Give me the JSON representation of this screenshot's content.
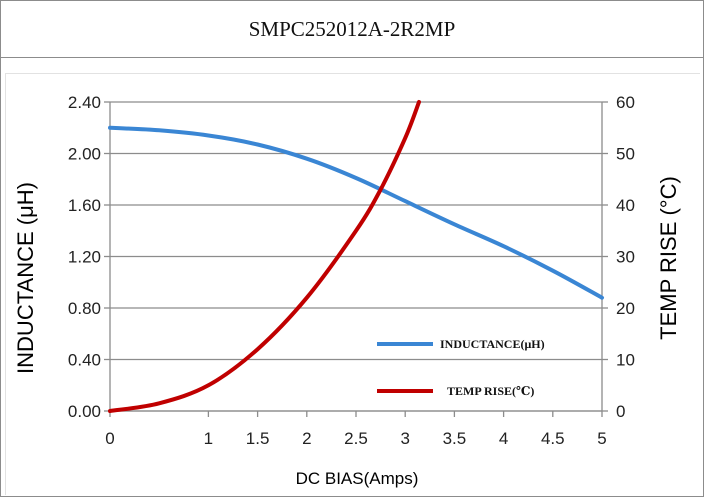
{
  "title": "SMPC252012A-2R2MP",
  "colors": {
    "inductance": "#3a86d4",
    "temp_rise": "#c00000",
    "grid": "#8c8c8c",
    "frame": "#8c8c8c"
  },
  "chart_data": {
    "type": "line",
    "xlabel": "DC BIAS(Amps)",
    "ylabel_left": "INDUCTANCE  (μH)",
    "ylabel_right": "TEMP RISE (°C)",
    "xlim": [
      0,
      5
    ],
    "ylim_left": [
      0,
      2.4
    ],
    "ylim_right": [
      0,
      60
    ],
    "x_ticks": [
      "0",
      "1",
      "1.5",
      "2",
      "2.5",
      "3",
      "3.5",
      "4",
      "4.5",
      "5"
    ],
    "x_tick_values": [
      0,
      1,
      1.5,
      2,
      2.5,
      3,
      3.5,
      4,
      4.5,
      5
    ],
    "y_left_ticks": [
      "0.00",
      "0.40",
      "0.80",
      "1.20",
      "1.60",
      "2.00",
      "2.40"
    ],
    "y_left_tick_values": [
      0,
      0.4,
      0.8,
      1.2,
      1.6,
      2.0,
      2.4
    ],
    "y_right_ticks": [
      "0",
      "10",
      "20",
      "30",
      "40",
      "50",
      "60"
    ],
    "y_right_tick_values": [
      0,
      10,
      20,
      30,
      40,
      50,
      60
    ],
    "grid": "horizontal",
    "legend_position": "bottom-right",
    "series": [
      {
        "name": "INDUCTANCE(μH)",
        "axis": "left",
        "x": [
          0,
          0.5,
          1,
          1.5,
          2,
          2.5,
          3,
          3.5,
          4,
          4.5,
          5
        ],
        "y": [
          2.2,
          2.18,
          2.14,
          2.07,
          1.96,
          1.81,
          1.63,
          1.45,
          1.28,
          1.09,
          0.88
        ]
      },
      {
        "name": "TEMP RISE(℃)",
        "axis": "right",
        "x": [
          0,
          0.5,
          1,
          1.5,
          2,
          2.5,
          2.75,
          3,
          3.14
        ],
        "y": [
          0,
          1.5,
          5,
          12,
          22,
          35,
          43,
          53,
          60
        ]
      }
    ]
  }
}
